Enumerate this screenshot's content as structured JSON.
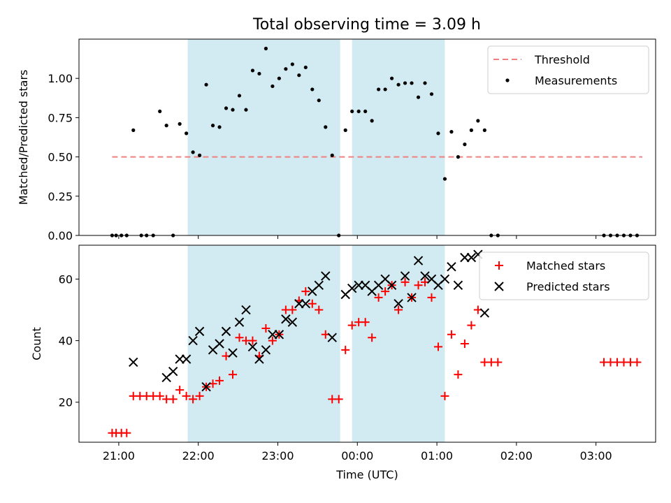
{
  "figure": {
    "title": "Total observing time = 3.09 h"
  },
  "colors": {
    "threshold": "#f08080",
    "shade": "#add8e6",
    "matched": "#ff0000",
    "predicted": "#000000",
    "measure": "#000000"
  },
  "chart_data": [
    {
      "type": "scatter",
      "ylabel": "Matched/Predicted stars",
      "xlim": [
        "20:30",
        "03:45"
      ],
      "ylim": [
        0,
        1.25
      ],
      "yticks": [
        "0.00",
        "0.25",
        "0.50",
        "0.75",
        "1.00"
      ],
      "yticks_num": [
        0,
        0.25,
        0.5,
        0.75,
        1.0
      ],
      "legend": {
        "placement": "top-right",
        "entries": [
          {
            "label": "Threshold",
            "kind": "dash"
          },
          {
            "label": "Measurements",
            "kind": "dot"
          }
        ]
      },
      "shaded_intervals": [
        [
          "21:52",
          "23:47"
        ],
        [
          "23:56",
          "01:06"
        ]
      ],
      "threshold": {
        "y": 0.5,
        "x": [
          "20:55",
          "03:35"
        ]
      },
      "series": [
        {
          "label": "Measurements",
          "points": [
            [
              "20:55",
              0
            ],
            [
              "20:58",
              0
            ],
            [
              "21:02",
              0
            ],
            [
              "21:06",
              0
            ],
            [
              "21:11",
              0.67
            ],
            [
              "21:17",
              0
            ],
            [
              "21:21",
              0
            ],
            [
              "21:26",
              0
            ],
            [
              "21:31",
              0.79
            ],
            [
              "21:36",
              0.7
            ],
            [
              "21:41",
              0
            ],
            [
              "21:46",
              0.71
            ],
            [
              "21:51",
              0.65
            ],
            [
              "21:56",
              0.53
            ],
            [
              "22:01",
              0.51
            ],
            [
              "22:06",
              0.96
            ],
            [
              "22:11",
              0.7
            ],
            [
              "22:16",
              0.69
            ],
            [
              "22:21",
              0.81
            ],
            [
              "22:26",
              0.8
            ],
            [
              "22:31",
              0.89
            ],
            [
              "22:36",
              0.8
            ],
            [
              "22:41",
              1.05
            ],
            [
              "22:46",
              1.03
            ],
            [
              "22:51",
              1.19
            ],
            [
              "22:56",
              0.95
            ],
            [
              "23:01",
              1.0
            ],
            [
              "23:06",
              1.06
            ],
            [
              "23:11",
              1.09
            ],
            [
              "23:16",
              1.02
            ],
            [
              "23:21",
              1.07
            ],
            [
              "23:26",
              0.93
            ],
            [
              "23:31",
              0.86
            ],
            [
              "23:36",
              0.69
            ],
            [
              "23:41",
              0.51
            ],
            [
              "23:46",
              0
            ],
            [
              "23:51",
              0.67
            ],
            [
              "23:56",
              0.79
            ],
            [
              "00:01",
              0.79
            ],
            [
              "00:06",
              0.79
            ],
            [
              "00:11",
              0.73
            ],
            [
              "00:16",
              0.93
            ],
            [
              "00:21",
              0.93
            ],
            [
              "00:26",
              1.0
            ],
            [
              "00:31",
              0.96
            ],
            [
              "00:36",
              0.97
            ],
            [
              "00:41",
              0.97
            ],
            [
              "00:46",
              0.88
            ],
            [
              "00:51",
              0.97
            ],
            [
              "00:56",
              0.9
            ],
            [
              "01:01",
              0.65
            ],
            [
              "01:06",
              0.36
            ],
            [
              "01:11",
              0.66
            ],
            [
              "01:16",
              0.5
            ],
            [
              "01:21",
              0.58
            ],
            [
              "01:26",
              0.67
            ],
            [
              "01:31",
              0.73
            ],
            [
              "01:36",
              0.67
            ],
            [
              "01:41",
              0
            ],
            [
              "01:46",
              0
            ],
            [
              "03:06",
              0
            ],
            [
              "03:11",
              0
            ],
            [
              "03:16",
              0
            ],
            [
              "03:21",
              0
            ],
            [
              "03:26",
              0
            ],
            [
              "03:31",
              0
            ]
          ]
        }
      ]
    },
    {
      "type": "scatter",
      "ylabel": "Count",
      "xlabel": "Time (UTC)",
      "xlim": [
        "20:30",
        "03:45"
      ],
      "ylim": [
        7,
        71
      ],
      "yticks": [
        "20",
        "40",
        "60"
      ],
      "yticks_num": [
        20,
        40,
        60
      ],
      "xticks": [
        "21:00",
        "22:00",
        "23:00",
        "00:00",
        "01:00",
        "02:00",
        "03:00"
      ],
      "xticks_pos": [
        "21:00",
        "22:00",
        "23:00",
        "00:00",
        "01:00",
        "02:00",
        "03:00"
      ],
      "legend": {
        "placement": "top-right",
        "entries": [
          {
            "label": "Matched stars",
            "kind": "plus"
          },
          {
            "label": "Predicted stars",
            "kind": "x"
          }
        ]
      },
      "shaded_intervals": [
        [
          "21:52",
          "23:47"
        ],
        [
          "23:56",
          "01:06"
        ]
      ],
      "series": [
        {
          "label": "Matched stars",
          "marker": "plus",
          "points": [
            [
              "20:55",
              10
            ],
            [
              "20:58",
              10
            ],
            [
              "21:02",
              10
            ],
            [
              "21:06",
              10
            ],
            [
              "21:11",
              22
            ],
            [
              "21:16",
              22
            ],
            [
              "21:21",
              22
            ],
            [
              "21:26",
              22
            ],
            [
              "21:31",
              22
            ],
            [
              "21:36",
              21
            ],
            [
              "21:41",
              21
            ],
            [
              "21:46",
              24
            ],
            [
              "21:51",
              22
            ],
            [
              "21:56",
              21
            ],
            [
              "22:01",
              22
            ],
            [
              "22:06",
              25
            ],
            [
              "22:11",
              26
            ],
            [
              "22:16",
              27
            ],
            [
              "22:21",
              35
            ],
            [
              "22:26",
              29
            ],
            [
              "22:31",
              41
            ],
            [
              "22:36",
              40
            ],
            [
              "22:41",
              40
            ],
            [
              "22:46",
              35
            ],
            [
              "22:51",
              44
            ],
            [
              "22:56",
              40
            ],
            [
              "23:01",
              42
            ],
            [
              "23:06",
              50
            ],
            [
              "23:11",
              50
            ],
            [
              "23:16",
              53
            ],
            [
              "23:21",
              56
            ],
            [
              "23:26",
              52
            ],
            [
              "23:31",
              50
            ],
            [
              "23:36",
              42
            ],
            [
              "23:41",
              21
            ],
            [
              "23:46",
              21
            ],
            [
              "23:51",
              37
            ],
            [
              "23:56",
              45
            ],
            [
              "00:01",
              46
            ],
            [
              "00:06",
              46
            ],
            [
              "00:11",
              41
            ],
            [
              "00:16",
              54
            ],
            [
              "00:21",
              56
            ],
            [
              "00:26",
              58
            ],
            [
              "00:31",
              50
            ],
            [
              "00:36",
              59
            ],
            [
              "00:41",
              54
            ],
            [
              "00:46",
              58
            ],
            [
              "00:51",
              59
            ],
            [
              "00:56",
              54
            ],
            [
              "01:01",
              38
            ],
            [
              "01:06",
              22
            ],
            [
              "01:11",
              42
            ],
            [
              "01:16",
              29
            ],
            [
              "01:21",
              39
            ],
            [
              "01:26",
              45
            ],
            [
              "01:31",
              50
            ],
            [
              "01:36",
              33
            ],
            [
              "01:41",
              33
            ],
            [
              "01:46",
              33
            ],
            [
              "03:06",
              33
            ],
            [
              "03:11",
              33
            ],
            [
              "03:16",
              33
            ],
            [
              "03:21",
              33
            ],
            [
              "03:26",
              33
            ],
            [
              "03:31",
              33
            ]
          ]
        },
        {
          "label": "Predicted stars",
          "marker": "x",
          "points": [
            [
              "21:11",
              33
            ],
            [
              "21:36",
              28
            ],
            [
              "21:41",
              30
            ],
            [
              "21:46",
              34
            ],
            [
              "21:51",
              34
            ],
            [
              "21:56",
              40
            ],
            [
              "22:01",
              43
            ],
            [
              "22:06",
              25
            ],
            [
              "22:11",
              37
            ],
            [
              "22:16",
              39
            ],
            [
              "22:21",
              43
            ],
            [
              "22:26",
              36
            ],
            [
              "22:31",
              46
            ],
            [
              "22:36",
              50
            ],
            [
              "22:41",
              38
            ],
            [
              "22:46",
              34
            ],
            [
              "22:51",
              37
            ],
            [
              "22:56",
              42
            ],
            [
              "23:01",
              42
            ],
            [
              "23:06",
              47
            ],
            [
              "23:11",
              46
            ],
            [
              "23:16",
              52
            ],
            [
              "23:21",
              52
            ],
            [
              "23:26",
              56
            ],
            [
              "23:31",
              58
            ],
            [
              "23:36",
              61
            ],
            [
              "23:41",
              41
            ],
            [
              "23:51",
              55
            ],
            [
              "23:56",
              57
            ],
            [
              "00:01",
              58
            ],
            [
              "00:06",
              58
            ],
            [
              "00:11",
              56
            ],
            [
              "00:16",
              58
            ],
            [
              "00:21",
              60
            ],
            [
              "00:26",
              58
            ],
            [
              "00:31",
              52
            ],
            [
              "00:36",
              61
            ],
            [
              "00:41",
              54
            ],
            [
              "00:46",
              66
            ],
            [
              "00:51",
              61
            ],
            [
              "00:56",
              60
            ],
            [
              "01:01",
              58
            ],
            [
              "01:06",
              60
            ],
            [
              "01:11",
              64
            ],
            [
              "01:16",
              58
            ],
            [
              "01:21",
              67
            ],
            [
              "01:26",
              67
            ],
            [
              "01:31",
              68
            ],
            [
              "01:36",
              49
            ]
          ]
        }
      ]
    }
  ]
}
